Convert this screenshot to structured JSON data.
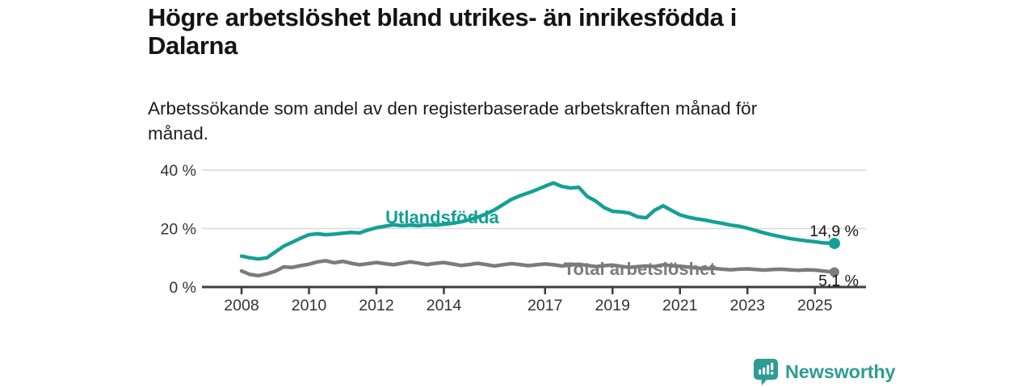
{
  "page": {
    "title": "Högre arbetslöshet bland utrikes- än inrikesfödda i\nDalarna",
    "subtitle": "Arbetssökande som andel av den registerbaserade arbetskraften månad för\nmånad."
  },
  "branding": {
    "logo_text": "Newsworthy",
    "logo_color": "#2E9C93"
  },
  "chart_data": {
    "type": "line",
    "title": "Högre arbetslöshet bland utrikes- än inrikesfödda i Dalarna",
    "subtitle": "Arbetssökande som andel av den registerbaserade arbetskraften månad för månad.",
    "xlabel": "",
    "ylabel": "",
    "xlim": [
      2006.8,
      2026.5
    ],
    "ylim": [
      0,
      44
    ],
    "grid": "horizontal",
    "legend_position": "inline-labels",
    "colors": {
      "grid": "#D9D9D9",
      "axis": "#3D3D3D",
      "tick_text": "#333333",
      "end_label_text": "#1A1A1A"
    },
    "x_ticks": [
      {
        "year": 2008,
        "label": "2008"
      },
      {
        "year": 2010,
        "label": "2010"
      },
      {
        "year": 2012,
        "label": "2012"
      },
      {
        "year": 2014,
        "label": "2014"
      },
      {
        "year": 2017,
        "label": "2017"
      },
      {
        "year": 2019,
        "label": "2019"
      },
      {
        "year": 2021,
        "label": "2021"
      },
      {
        "year": 2023,
        "label": "2023"
      },
      {
        "year": 2025,
        "label": "2025"
      }
    ],
    "y_ticks": [
      {
        "value": 0,
        "label": "0 %"
      },
      {
        "value": 20,
        "label": "20 %"
      },
      {
        "value": 40,
        "label": "40 %"
      }
    ],
    "series": [
      {
        "name": "Utlandsfödda",
        "color": "#14A096",
        "end_label": "14,9 %",
        "end_value": 14.9,
        "label_anchor": {
          "year": 2013.95,
          "value": 21.8
        },
        "x": [
          2008,
          2008.25,
          2008.5,
          2008.75,
          2009,
          2009.25,
          2009.5,
          2009.75,
          2010,
          2010.25,
          2010.5,
          2010.75,
          2011,
          2011.25,
          2011.5,
          2011.75,
          2012,
          2012.25,
          2012.5,
          2012.75,
          2013,
          2013.25,
          2013.5,
          2013.75,
          2014,
          2014.25,
          2014.5,
          2014.75,
          2015,
          2015.25,
          2015.5,
          2015.75,
          2016,
          2016.25,
          2016.5,
          2016.75,
          2017,
          2017.25,
          2017.5,
          2017.75,
          2018,
          2018.25,
          2018.5,
          2018.75,
          2019,
          2019.25,
          2019.5,
          2019.75,
          2020,
          2020.25,
          2020.5,
          2020.75,
          2021,
          2021.25,
          2021.5,
          2021.75,
          2022,
          2022.25,
          2022.5,
          2022.75,
          2023,
          2023.25,
          2023.5,
          2023.75,
          2024,
          2024.25,
          2024.5,
          2024.75,
          2025,
          2025.25,
          2025.58
        ],
        "values": [
          10.6,
          10.0,
          9.6,
          10.0,
          12.0,
          14.0,
          15.3,
          16.7,
          17.9,
          18.2,
          17.9,
          18.1,
          18.4,
          18.7,
          18.5,
          19.5,
          20.3,
          20.8,
          21.3,
          21.0,
          21.2,
          21.0,
          21.3,
          21.2,
          21.5,
          21.8,
          22.3,
          23.0,
          23.9,
          25.0,
          26.4,
          28.2,
          30.0,
          31.2,
          32.2,
          33.3,
          34.5,
          35.6,
          34.4,
          33.9,
          34.1,
          31.0,
          29.4,
          27.2,
          25.9,
          25.7,
          25.3,
          24.0,
          23.7,
          26.3,
          27.8,
          26.2,
          24.7,
          23.9,
          23.3,
          22.9,
          22.3,
          21.8,
          21.2,
          20.8,
          20.1,
          19.3,
          18.5,
          17.8,
          17.2,
          16.6,
          16.2,
          15.8,
          15.5,
          15.1,
          14.9
        ]
      },
      {
        "name": "Total arbetslöshet",
        "color": "#7B7B7B",
        "end_label": "5,1 %",
        "end_value": 5.1,
        "label_anchor": {
          "year": 2019.8,
          "value": 4.1
        },
        "x": [
          2008,
          2008.25,
          2008.5,
          2008.75,
          2009,
          2009.25,
          2009.5,
          2009.75,
          2010,
          2010.25,
          2010.5,
          2010.75,
          2011,
          2011.25,
          2011.5,
          2011.75,
          2012,
          2012.25,
          2012.5,
          2012.75,
          2013,
          2013.25,
          2013.5,
          2013.75,
          2014,
          2014.25,
          2014.5,
          2014.75,
          2015,
          2015.25,
          2015.5,
          2015.75,
          2016,
          2016.25,
          2016.5,
          2016.75,
          2017,
          2017.25,
          2017.5,
          2017.75,
          2018,
          2018.25,
          2018.5,
          2018.75,
          2019,
          2019.25,
          2019.5,
          2019.75,
          2020,
          2020.25,
          2020.5,
          2020.75,
          2021,
          2021.25,
          2021.5,
          2021.75,
          2022,
          2022.25,
          2022.5,
          2022.75,
          2023,
          2023.25,
          2023.5,
          2023.75,
          2024,
          2024.25,
          2024.5,
          2024.75,
          2025,
          2025.25,
          2025.58
        ],
        "values": [
          5.5,
          4.3,
          3.9,
          4.5,
          5.4,
          6.9,
          6.7,
          7.3,
          7.8,
          8.6,
          9.0,
          8.3,
          8.8,
          8.1,
          7.6,
          8.0,
          8.4,
          8.0,
          7.6,
          8.1,
          8.6,
          8.2,
          7.7,
          8.1,
          8.4,
          7.9,
          7.4,
          7.7,
          8.1,
          7.7,
          7.2,
          7.6,
          8.0,
          7.7,
          7.3,
          7.6,
          7.9,
          7.6,
          7.2,
          7.5,
          7.8,
          7.4,
          7.0,
          7.3,
          7.5,
          7.1,
          6.7,
          7.0,
          7.2,
          7.0,
          7.6,
          7.3,
          7.1,
          6.8,
          6.5,
          6.3,
          6.4,
          6.1,
          5.9,
          6.1,
          6.2,
          6.0,
          5.8,
          6.0,
          6.1,
          5.9,
          5.7,
          5.9,
          5.8,
          5.5,
          5.1
        ]
      }
    ]
  }
}
